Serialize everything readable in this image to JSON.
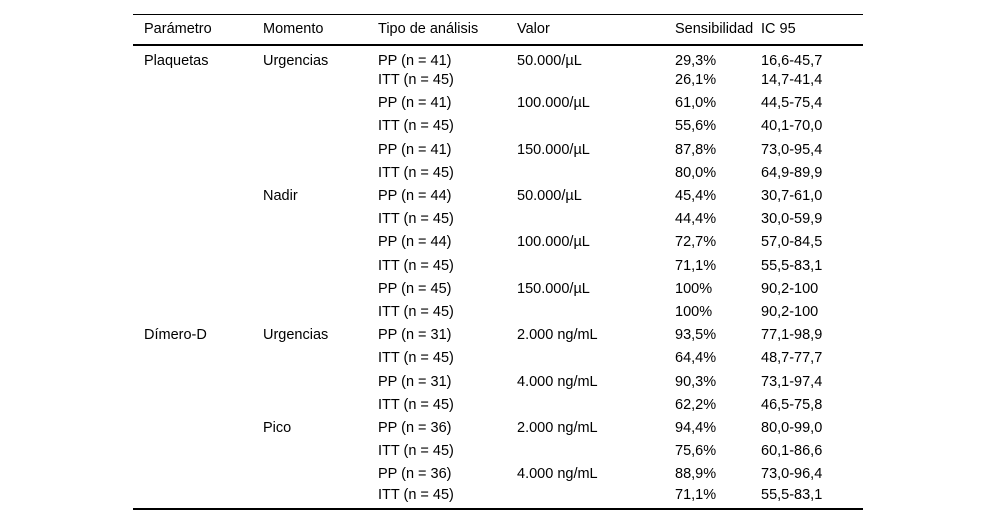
{
  "table": {
    "columns": [
      "Parámetro",
      "Momento",
      "Tipo de análisis",
      "Valor",
      "Sensibilidad",
      "IC 95"
    ],
    "rows": [
      [
        "Plaquetas",
        "Urgencias",
        "PP (n = 41)",
        "50.000/µL",
        "29,3%",
        "16,6-45,7"
      ],
      [
        "",
        "",
        "ITT (n = 45)",
        "",
        "26,1%",
        "14,7-41,4"
      ],
      [
        "",
        "",
        "PP (n = 41)",
        "100.000/µL",
        "61,0%",
        "44,5-75,4"
      ],
      [
        "",
        "",
        "ITT (n = 45)",
        "",
        "55,6%",
        "40,1-70,0"
      ],
      [
        "",
        "",
        "PP (n = 41)",
        "150.000/µL",
        "87,8%",
        "73,0-95,4"
      ],
      [
        "",
        "",
        "ITT (n = 45)",
        "",
        "80,0%",
        "64,9-89,9"
      ],
      [
        "",
        "Nadir",
        "PP (n = 44)",
        "50.000/µL",
        "45,4%",
        "30,7-61,0"
      ],
      [
        "",
        "",
        "ITT (n = 45)",
        "",
        "44,4%",
        "30,0-59,9"
      ],
      [
        "",
        "",
        "PP (n = 44)",
        "100.000/µL",
        "72,7%",
        "57,0-84,5"
      ],
      [
        "",
        "",
        "ITT (n = 45)",
        "",
        "71,1%",
        "55,5-83,1"
      ],
      [
        "",
        "",
        "PP (n = 45)",
        "150.000/µL",
        "100%",
        "90,2-100"
      ],
      [
        "",
        "",
        "ITT (n = 45)",
        "",
        "100%",
        "90,2-100"
      ],
      [
        "Dímero-D",
        "Urgencias",
        "PP (n = 31)",
        "2.000 ng/mL",
        "93,5%",
        "77,1-98,9"
      ],
      [
        "",
        "",
        "ITT (n = 45)",
        "",
        "64,4%",
        "48,7-77,7"
      ],
      [
        "",
        "",
        "PP (n = 31)",
        "4.000 ng/mL",
        "90,3%",
        "73,1-97,4"
      ],
      [
        "",
        "",
        "ITT (n = 45)",
        "",
        "62,2%",
        "46,5-75,8"
      ],
      [
        "",
        "Pico",
        "PP (n = 36)",
        "2.000 ng/mL",
        "94,4%",
        "80,0-99,0"
      ],
      [
        "",
        "",
        "ITT (n = 45)",
        "",
        "75,6%",
        "60,1-86,6"
      ],
      [
        "",
        "",
        "PP (n = 36)",
        "4.000 ng/mL",
        "88,9%",
        "73,0-96,4"
      ],
      [
        "",
        "",
        "ITT (n = 45)",
        "",
        "71,1%",
        "55,5-83,1"
      ]
    ]
  },
  "colors": {
    "background": "#ffffff",
    "text": "#000000",
    "border": "#000000"
  }
}
